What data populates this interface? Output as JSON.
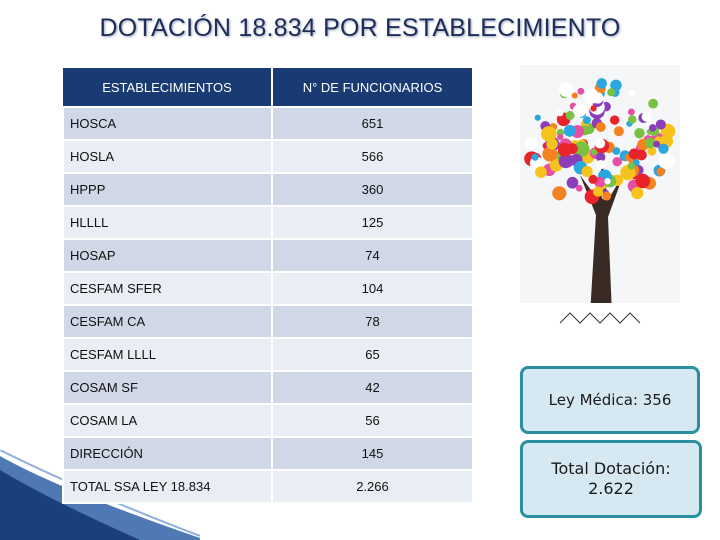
{
  "title": "DOTACIÓN  18.834 POR ESTABLECIMIENTO",
  "table": {
    "headers": [
      "ESTABLECIMIENTOS",
      "N° DE FUNCIONARIOS"
    ],
    "rows": [
      [
        "HOSCA",
        "651"
      ],
      [
        "HOSLA",
        "566"
      ],
      [
        "HPPP",
        "360"
      ],
      [
        "HLLLL",
        "125"
      ],
      [
        "HOSAP",
        "74"
      ],
      [
        "CESFAM SFER",
        "104"
      ],
      [
        "CESFAM CA",
        "78"
      ],
      [
        "CESFAM LLLL",
        "65"
      ],
      [
        "COSAM SF",
        "42"
      ],
      [
        "COSAM LA",
        "56"
      ],
      [
        "DIRECCIÓN",
        "145"
      ],
      [
        "TOTAL SSA LEY 18.834",
        "2.266"
      ]
    ]
  },
  "boxes": {
    "ley": "Ley Médica: 356",
    "total_label": "Total Dotación:",
    "total_value": "2.622"
  }
}
